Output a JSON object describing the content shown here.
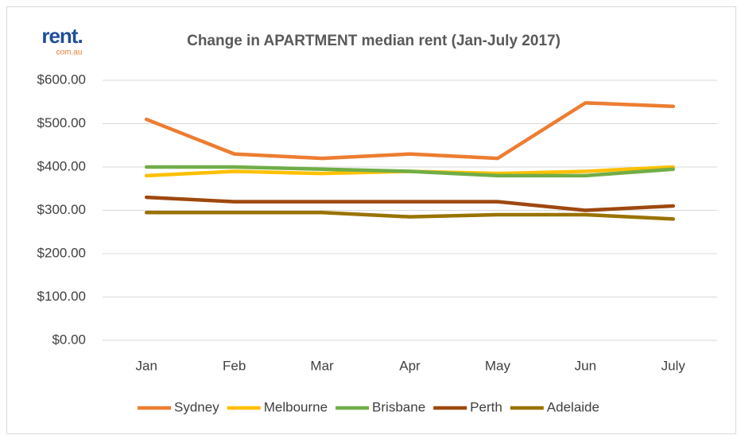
{
  "logo": {
    "name": "rent.",
    "sub": "com.au"
  },
  "chart_data": {
    "type": "line",
    "title": "Change in APARTMENT median rent (Jan-July 2017)",
    "categories": [
      "Jan",
      "Feb",
      "Mar",
      "Apr",
      "May",
      "Jun",
      "July"
    ],
    "series": [
      {
        "name": "Sydney",
        "color": "#ed7d31",
        "values": [
          510,
          430,
          420,
          430,
          420,
          548,
          540
        ]
      },
      {
        "name": "Melbourne",
        "color": "#ffc000",
        "values": [
          380,
          390,
          385,
          390,
          385,
          390,
          400
        ]
      },
      {
        "name": "Brisbane",
        "color": "#70ad47",
        "values": [
          400,
          400,
          395,
          390,
          380,
          380,
          395
        ]
      },
      {
        "name": "Perth",
        "color": "#9e480e",
        "values": [
          330,
          320,
          320,
          320,
          320,
          300,
          310
        ]
      },
      {
        "name": "Adelaide",
        "color": "#997300",
        "values": [
          295,
          295,
          295,
          285,
          290,
          290,
          280
        ]
      }
    ],
    "ylim": [
      0,
      600
    ],
    "yticks": [
      {
        "value": 0,
        "label": "$0.00"
      },
      {
        "value": 100,
        "label": "$100.00"
      },
      {
        "value": 200,
        "label": "$200.00"
      },
      {
        "value": 300,
        "label": "$300.00"
      },
      {
        "value": 400,
        "label": "$400.00"
      },
      {
        "value": 500,
        "label": "$500.00"
      },
      {
        "value": 600,
        "label": "$600.00"
      }
    ],
    "grid": true,
    "legend": "bottom"
  }
}
